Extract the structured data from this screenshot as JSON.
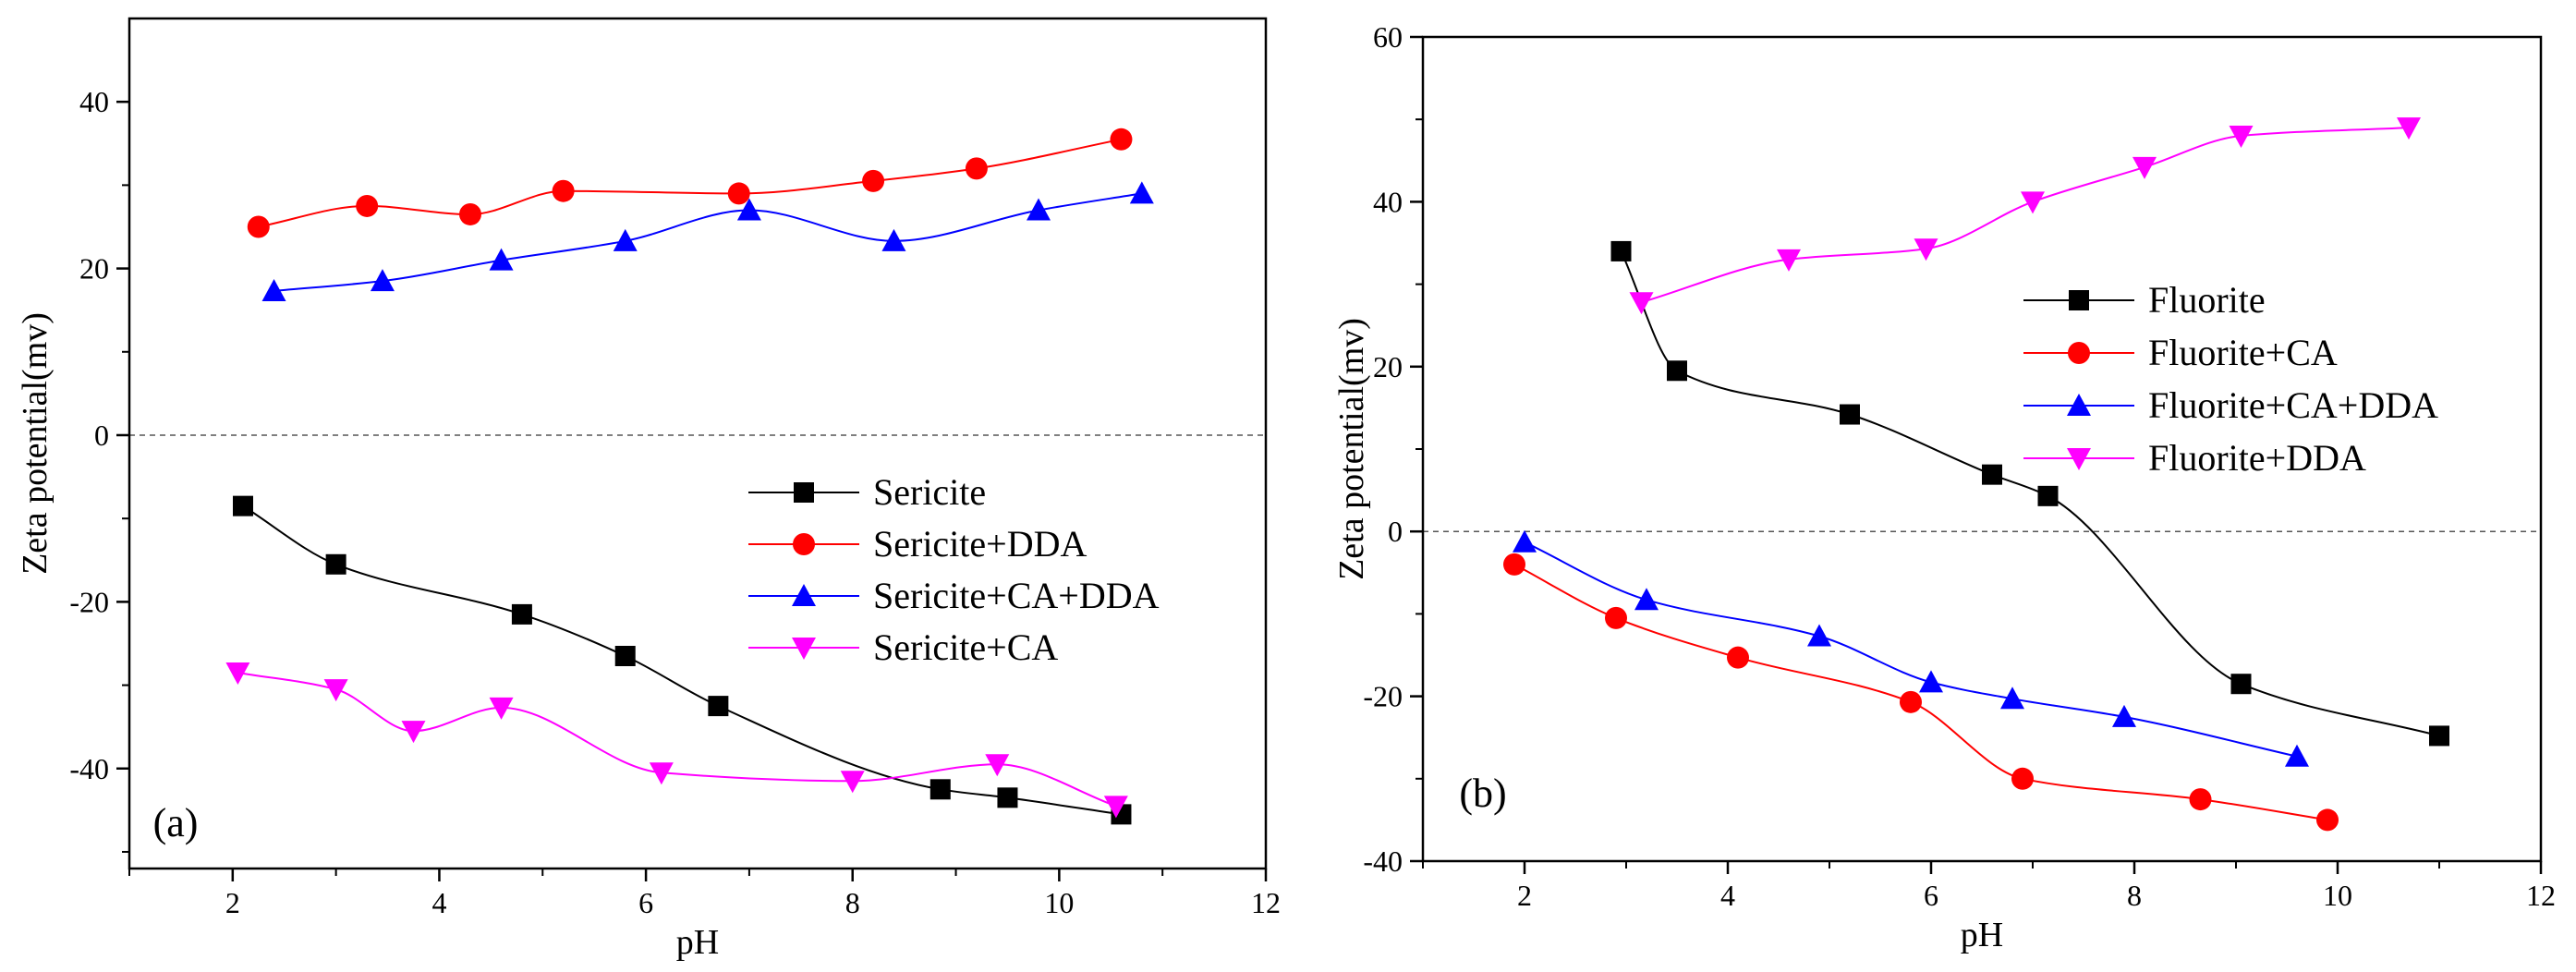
{
  "chart_data": [
    {
      "type": "line",
      "panel_label": "(a)",
      "xlabel": "pH",
      "ylabel": "Zeta potential(mv)",
      "xlim": [
        1,
        12
      ],
      "ylim": [
        -52,
        50
      ],
      "xticks": [
        2,
        4,
        6,
        8,
        10,
        12
      ],
      "yticks": [
        -40,
        -20,
        0,
        20,
        40
      ],
      "zero_line": true,
      "legend_position": "center-right",
      "series": [
        {
          "name": "Sericite",
          "color": "#000000",
          "marker": "square",
          "x": [
            2.1,
            3.0,
            4.8,
            5.8,
            6.7,
            8.85,
            9.5,
            10.6
          ],
          "y": [
            -8.5,
            -15.5,
            -21.5,
            -26.5,
            -32.5,
            -42.5,
            -43.5,
            -45.5
          ]
        },
        {
          "name": "Sericite+DDA",
          "color": "#ff0000",
          "marker": "circle",
          "x": [
            2.25,
            3.3,
            4.3,
            5.2,
            6.9,
            8.2,
            9.2,
            10.6
          ],
          "y": [
            25.0,
            27.5,
            26.5,
            29.3,
            29.0,
            30.5,
            32.0,
            35.5
          ]
        },
        {
          "name": "Sericite+CA+DDA",
          "color": "#0000ff",
          "marker": "triangle-up",
          "x": [
            2.4,
            3.45,
            4.6,
            5.8,
            7.0,
            8.4,
            9.8,
            10.8
          ],
          "y": [
            17.3,
            18.5,
            21.0,
            23.3,
            27.0,
            23.3,
            27.0,
            29.0
          ]
        },
        {
          "name": "Sericite+CA",
          "color": "#ff00ff",
          "marker": "triangle-down",
          "x": [
            2.05,
            3.0,
            3.75,
            4.6,
            6.15,
            8.0,
            9.4,
            10.55
          ],
          "y": [
            -28.5,
            -30.5,
            -35.5,
            -32.7,
            -40.5,
            -41.5,
            -39.5,
            -44.5
          ]
        }
      ]
    },
    {
      "type": "line",
      "panel_label": "(b)",
      "xlabel": "pH",
      "ylabel": "Zeta potential(mv)",
      "xlim": [
        1,
        12
      ],
      "ylim": [
        -40,
        60
      ],
      "xticks": [
        2,
        4,
        6,
        8,
        10,
        12
      ],
      "yticks": [
        -40,
        -20,
        0,
        20,
        40,
        60
      ],
      "zero_line": true,
      "legend_position": "center-right",
      "series": [
        {
          "name": "Fluorite",
          "color": "#000000",
          "marker": "square",
          "x": [
            2.95,
            3.5,
            5.2,
            6.6,
            7.15,
            9.05,
            11.0
          ],
          "y": [
            34.0,
            19.5,
            14.2,
            6.9,
            4.3,
            -18.5,
            -24.8
          ]
        },
        {
          "name": "Fluorite+CA",
          "color": "#ff0000",
          "marker": "circle",
          "x": [
            1.9,
            2.9,
            4.1,
            5.8,
            6.9,
            8.65,
            9.9
          ],
          "y": [
            -4.0,
            -10.5,
            -15.3,
            -20.7,
            -30.0,
            -32.5,
            -35.0
          ]
        },
        {
          "name": "Fluorite+CA+DDA",
          "color": "#0000ff",
          "marker": "triangle-up",
          "x": [
            2.0,
            3.2,
            4.9,
            6.0,
            6.8,
            7.9,
            9.6
          ],
          "y": [
            -1.3,
            -8.3,
            -12.7,
            -18.3,
            -20.3,
            -22.5,
            -27.3
          ]
        },
        {
          "name": "Fluorite+DDA",
          "color": "#ff00ff",
          "marker": "triangle-down",
          "x": [
            3.15,
            4.6,
            5.95,
            7.0,
            8.1,
            9.05,
            10.7
          ],
          "y": [
            27.8,
            33.0,
            34.3,
            40.0,
            44.2,
            48.0,
            49.0
          ]
        }
      ]
    }
  ]
}
